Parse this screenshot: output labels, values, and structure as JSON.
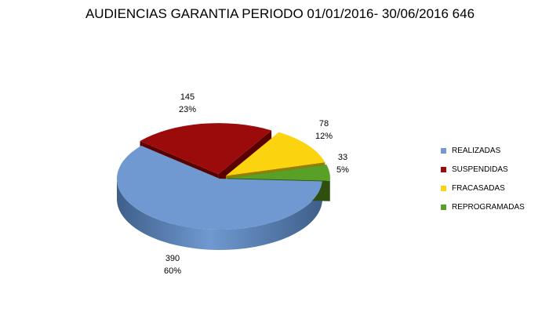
{
  "chart_data": {
    "type": "pie",
    "title": "AUDIENCIAS GARANTIA PERIODO 01/01/2016- 30/06/2016 646",
    "three_d": true,
    "legend_position": "right",
    "slices": [
      {
        "name": "REALIZADAS",
        "value": 390,
        "percent": "60%",
        "color": "#6f99d0",
        "side_color": "#3f5f8a",
        "exploded": false
      },
      {
        "name": "SUSPENDIDAS",
        "value": 145,
        "percent": "23%",
        "color": "#9b0b0b",
        "side_color": "#5a0000",
        "exploded": true
      },
      {
        "name": "FRACASADAS",
        "value": 78,
        "percent": "12%",
        "color": "#fcd30f",
        "side_color": "#9a7e00",
        "exploded": true
      },
      {
        "name": "REPROGRAMADAS",
        "value": 33,
        "percent": "5%",
        "color": "#59a026",
        "side_color": "#2f4f0f",
        "exploded": true
      }
    ]
  }
}
